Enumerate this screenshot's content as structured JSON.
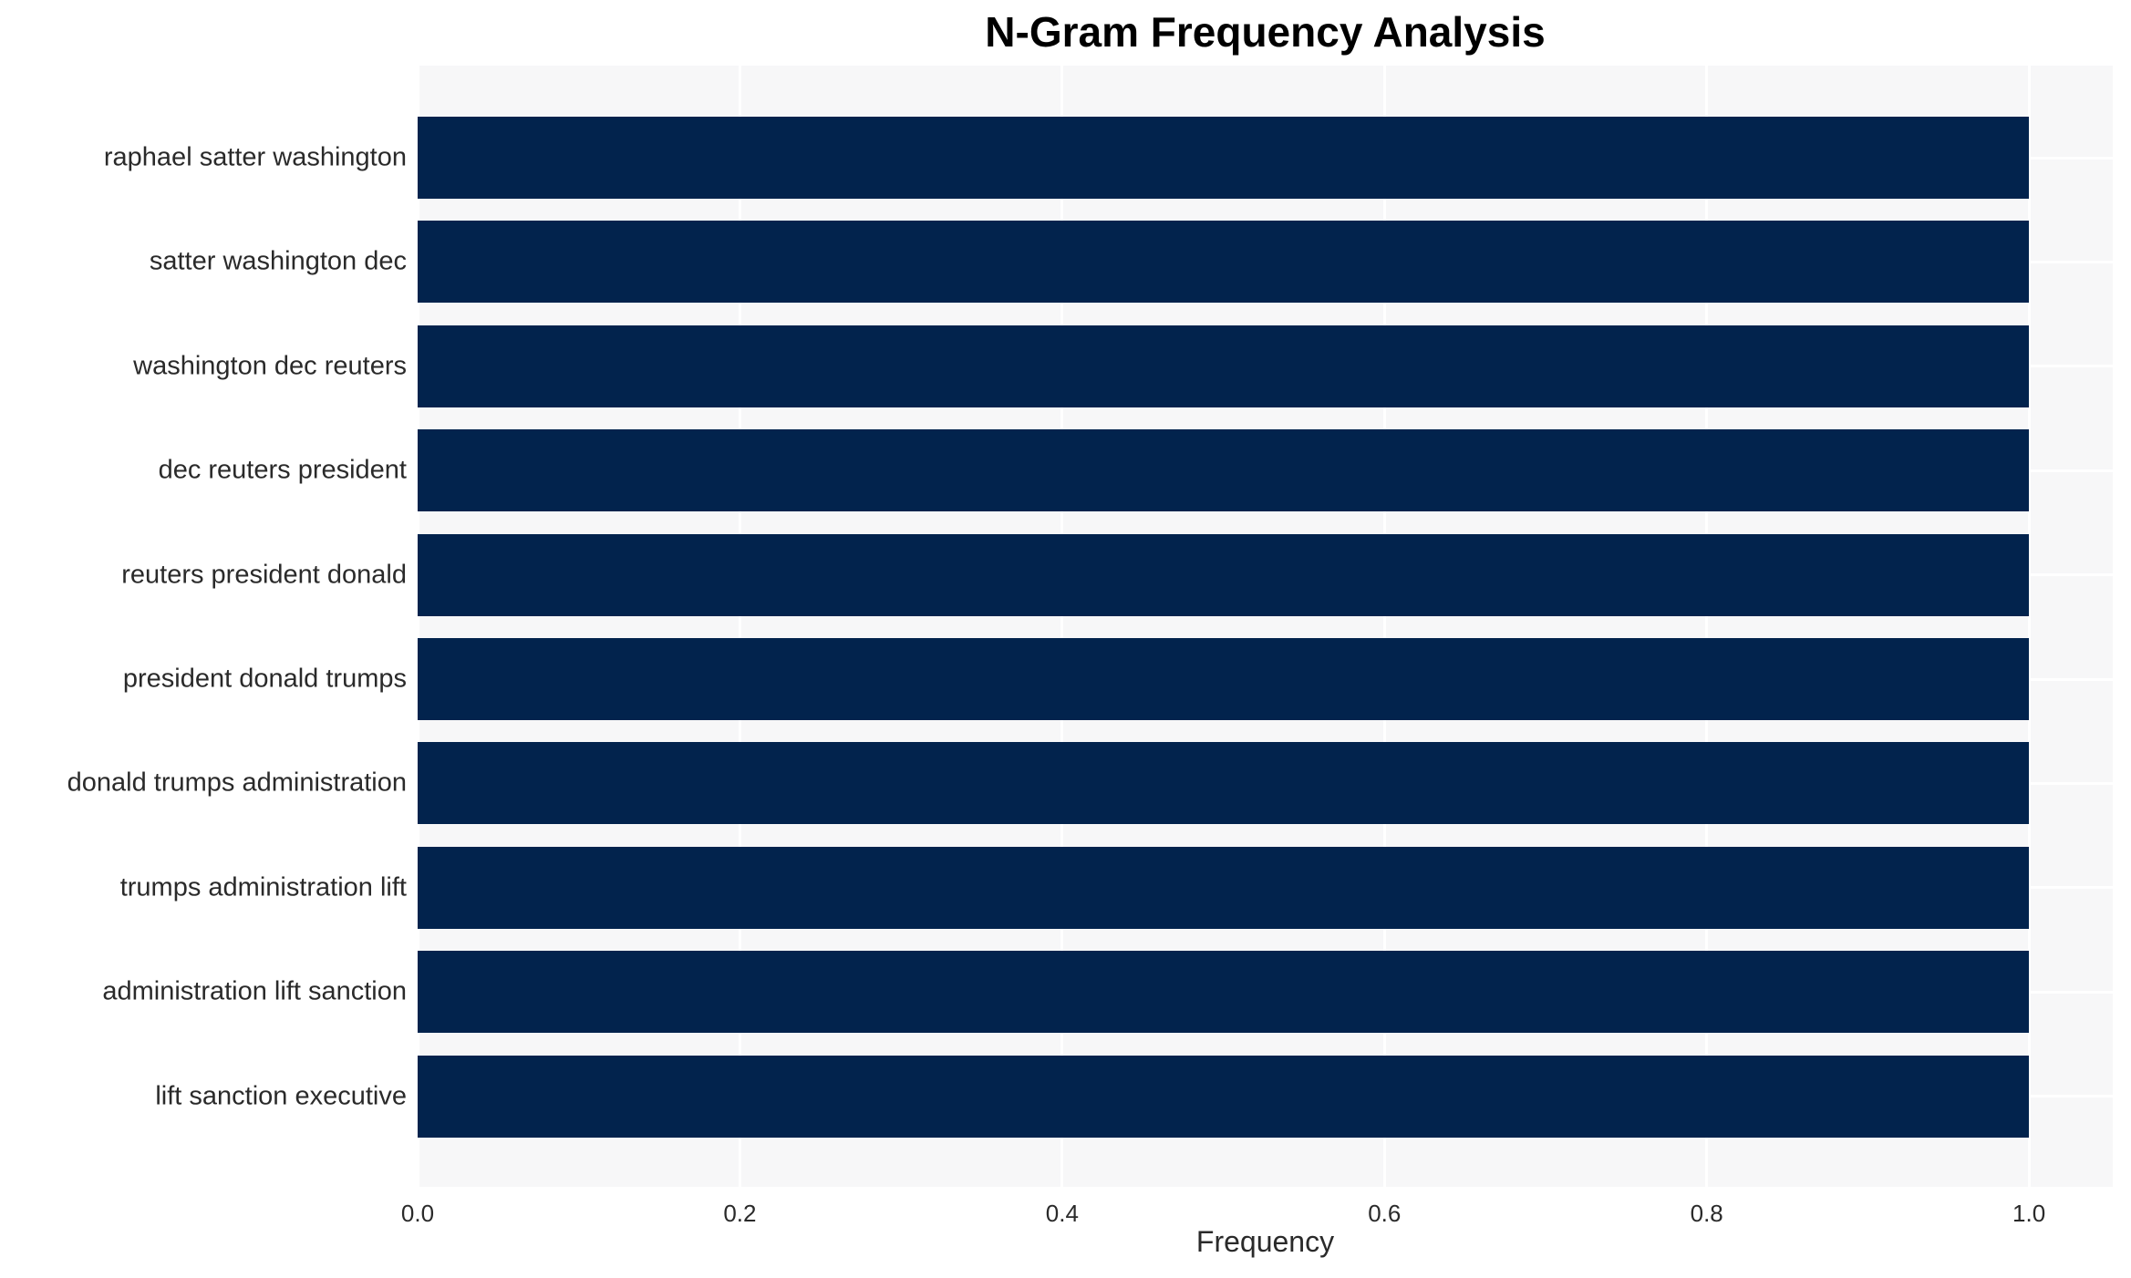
{
  "page": {
    "title": "N-Gram Frequency Analysis"
  },
  "chart_data": {
    "type": "bar",
    "orientation": "horizontal",
    "title": "N-Gram Frequency Analysis",
    "xlabel": "Frequency",
    "ylabel": "",
    "categories": [
      "raphael satter washington",
      "satter washington dec",
      "washington dec reuters",
      "dec reuters president",
      "reuters president donald",
      "president donald trumps",
      "donald trumps administration",
      "trumps administration lift",
      "administration lift sanction",
      "lift sanction executive"
    ],
    "values": [
      1.0,
      1.0,
      1.0,
      1.0,
      1.0,
      1.0,
      1.0,
      1.0,
      1.0,
      1.0
    ],
    "xlim": [
      0.0,
      1.052
    ],
    "xtick_labels": [
      "0.0",
      "0.2",
      "0.4",
      "0.6",
      "0.8",
      "1.0"
    ],
    "grid": "on",
    "legend_position": "none"
  },
  "colors": {
    "bar": "#02234d",
    "plot_background": "#f7f7f8",
    "gridline": "#ffffff",
    "figure_background": "#ffffff",
    "tick_text": "#2a2a2a",
    "title_text": "#000000"
  }
}
